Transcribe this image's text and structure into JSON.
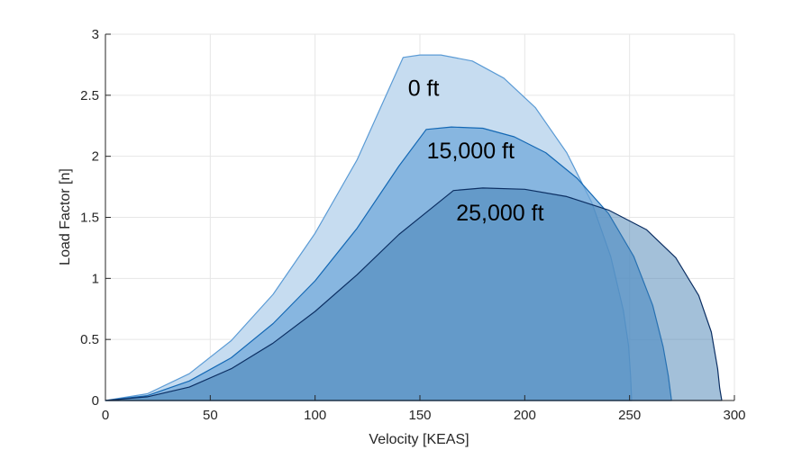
{
  "chart_data": {
    "type": "area",
    "title": "",
    "xlabel": "Velocity [KEAS]",
    "ylabel": "Load Factor [n]",
    "xlim": [
      0,
      300
    ],
    "ylim": [
      0,
      3
    ],
    "xticks": [
      "0",
      "50",
      "100",
      "150",
      "200",
      "250",
      "300"
    ],
    "yticks": [
      "0",
      "0.5",
      "1",
      "1.5",
      "2",
      "2.5",
      "3"
    ],
    "grid": true,
    "series": [
      {
        "label": "0 ft",
        "fill": "#c6dcf0",
        "stroke": "#5b9bd5",
        "fill_opacity": 1.0,
        "points": [
          [
            0,
            0
          ],
          [
            20,
            0.055
          ],
          [
            40,
            0.22
          ],
          [
            60,
            0.49
          ],
          [
            80,
            0.87
          ],
          [
            100,
            1.37
          ],
          [
            120,
            1.97
          ],
          [
            142,
            2.81
          ],
          [
            150,
            2.83
          ],
          [
            160,
            2.83
          ],
          [
            175,
            2.78
          ],
          [
            190,
            2.64
          ],
          [
            205,
            2.4
          ],
          [
            220,
            2.03
          ],
          [
            232,
            1.62
          ],
          [
            241,
            1.18
          ],
          [
            247,
            0.74
          ],
          [
            249.5,
            0.45
          ],
          [
            250.5,
            0.2
          ],
          [
            251,
            0
          ]
        ]
      },
      {
        "label": "15,000 ft",
        "fill": "#6fa8d9",
        "stroke": "#1468b4",
        "fill_opacity": 0.72,
        "points": [
          [
            0,
            0
          ],
          [
            20,
            0.04
          ],
          [
            40,
            0.16
          ],
          [
            60,
            0.35
          ],
          [
            80,
            0.63
          ],
          [
            100,
            0.98
          ],
          [
            120,
            1.41
          ],
          [
            140,
            1.92
          ],
          [
            153,
            2.22
          ],
          [
            165,
            2.24
          ],
          [
            180,
            2.23
          ],
          [
            195,
            2.16
          ],
          [
            210,
            2.03
          ],
          [
            225,
            1.82
          ],
          [
            240,
            1.53
          ],
          [
            252,
            1.18
          ],
          [
            261,
            0.78
          ],
          [
            266,
            0.44
          ],
          [
            268.5,
            0.2
          ],
          [
            270,
            0
          ]
        ]
      },
      {
        "label": "25,000 ft",
        "fill": "#3f7bb0",
        "stroke": "#0c2f63",
        "fill_opacity": 0.48,
        "points": [
          [
            0,
            0
          ],
          [
            20,
            0.03
          ],
          [
            40,
            0.11
          ],
          [
            60,
            0.26
          ],
          [
            80,
            0.47
          ],
          [
            100,
            0.73
          ],
          [
            120,
            1.03
          ],
          [
            140,
            1.36
          ],
          [
            166,
            1.72
          ],
          [
            180,
            1.74
          ],
          [
            200,
            1.73
          ],
          [
            220,
            1.67
          ],
          [
            240,
            1.56
          ],
          [
            258,
            1.4
          ],
          [
            272,
            1.17
          ],
          [
            283,
            0.86
          ],
          [
            289,
            0.56
          ],
          [
            292,
            0.26
          ],
          [
            293,
            0.1
          ],
          [
            294,
            0
          ]
        ]
      }
    ],
    "annotations": [
      {
        "text": "0 ft",
        "x": 143,
        "y": 2.56
      },
      {
        "text": "15,000 ft",
        "x": 152,
        "y": 2.05
      },
      {
        "text": "25,000 ft",
        "x": 166,
        "y": 1.54
      }
    ]
  }
}
